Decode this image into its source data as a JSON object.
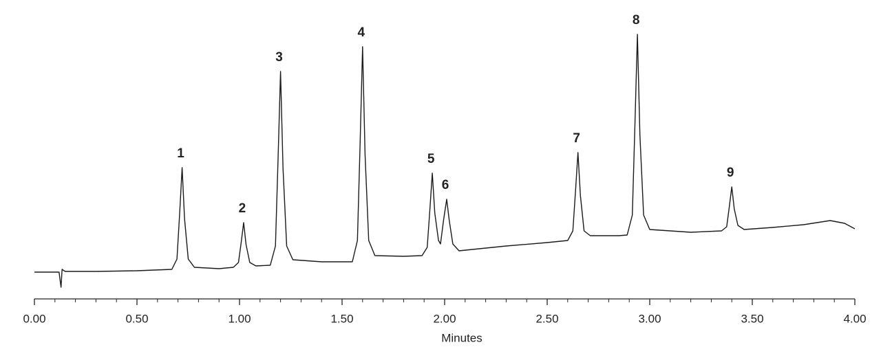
{
  "chart_data": {
    "type": "line",
    "x_label": "Minutes",
    "x": [
      0.0,
      0.12,
      0.13,
      0.135,
      0.15,
      0.3,
      0.5,
      0.67,
      0.695,
      0.708,
      0.72,
      0.732,
      0.75,
      0.78,
      0.9,
      0.97,
      0.995,
      1.008,
      1.02,
      1.032,
      1.05,
      1.08,
      1.15,
      1.175,
      1.188,
      1.2,
      1.212,
      1.23,
      1.26,
      1.4,
      1.55,
      1.575,
      1.588,
      1.6,
      1.612,
      1.63,
      1.66,
      1.8,
      1.89,
      1.915,
      1.928,
      1.94,
      1.952,
      1.97,
      1.98,
      1.995,
      2.01,
      2.022,
      2.04,
      2.07,
      2.3,
      2.5,
      2.6,
      2.625,
      2.638,
      2.65,
      2.662,
      2.68,
      2.71,
      2.85,
      2.89,
      2.915,
      2.928,
      2.94,
      2.952,
      2.97,
      3.0,
      3.2,
      3.35,
      3.375,
      3.388,
      3.4,
      3.412,
      3.43,
      3.46,
      3.6,
      3.75,
      3.88,
      3.95,
      4.0
    ],
    "values": [
      4,
      4,
      -18,
      8,
      5,
      5,
      6,
      8,
      23,
      89,
      156,
      82,
      23,
      11,
      9,
      11,
      18,
      47,
      76,
      44,
      18,
      13,
      14,
      42,
      169,
      296,
      155,
      42,
      22,
      19,
      19,
      50,
      191,
      332,
      175,
      50,
      28,
      27,
      28,
      40,
      94,
      148,
      90,
      50,
      45,
      80,
      110,
      80,
      45,
      35,
      42,
      47,
      50,
      64,
      121,
      178,
      115,
      64,
      57,
      57,
      58,
      87,
      219,
      350,
      204,
      87,
      66,
      62,
      64,
      70,
      99,
      128,
      96,
      72,
      66,
      69,
      73,
      79,
      75,
      67
    ],
    "color": "#1a1a1a",
    "xlim": [
      0,
      4
    ],
    "ylim": [
      -30,
      370
    ],
    "xticks": [
      {
        "value": 0,
        "label": "0.00"
      },
      {
        "value": 0.5,
        "label": "0.50"
      },
      {
        "value": 1,
        "label": "1.00"
      },
      {
        "value": 1.5,
        "label": "1.50"
      },
      {
        "value": 2,
        "label": "2.00"
      },
      {
        "value": 2.5,
        "label": "2.50"
      },
      {
        "value": 3,
        "label": "3.00"
      },
      {
        "value": 3.5,
        "label": "3.50"
      },
      {
        "value": 4,
        "label": "4.00"
      }
    ],
    "xminorticks": [
      0.1,
      0.2,
      0.3,
      0.4,
      0.6,
      0.7,
      0.8,
      0.9,
      1.1,
      1.2,
      1.3,
      1.4,
      1.6,
      1.7,
      1.8,
      1.9,
      2.1,
      2.2,
      2.3,
      2.4,
      2.6,
      2.7,
      2.8,
      2.9,
      3.1,
      3.2,
      3.3,
      3.4,
      3.6,
      3.7,
      3.8,
      3.9
    ],
    "peaks": [
      {
        "label": "1",
        "x": 0.72
      },
      {
        "label": "2",
        "x": 1.02
      },
      {
        "label": "3",
        "x": 1.2
      },
      {
        "label": "4",
        "x": 1.6
      },
      {
        "label": "5",
        "x": 1.94
      },
      {
        "label": "6",
        "x": 2.01
      },
      {
        "label": "7",
        "x": 2.65
      },
      {
        "label": "8",
        "x": 2.94
      },
      {
        "label": "9",
        "x": 3.4
      }
    ]
  }
}
